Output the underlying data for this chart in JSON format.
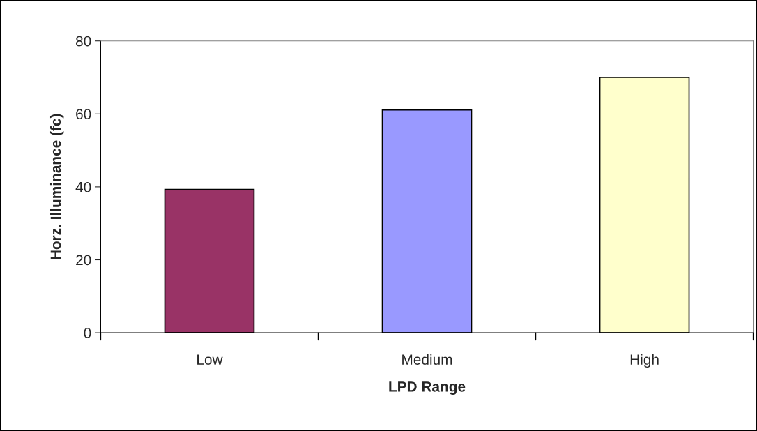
{
  "chart_data": {
    "type": "bar",
    "xlabel": "LPD Range",
    "ylabel": "Horz. Illuminance (fc)",
    "categories": [
      "Low",
      "Medium",
      "High"
    ],
    "values": [
      39.3,
      61.1,
      70.0
    ],
    "colors": [
      "#993366",
      "#9999ff",
      "#ffffcc"
    ],
    "ylim": [
      0,
      80
    ],
    "yticks": [
      0,
      20,
      40,
      60,
      80
    ],
    "grid": false,
    "legend": false
  }
}
